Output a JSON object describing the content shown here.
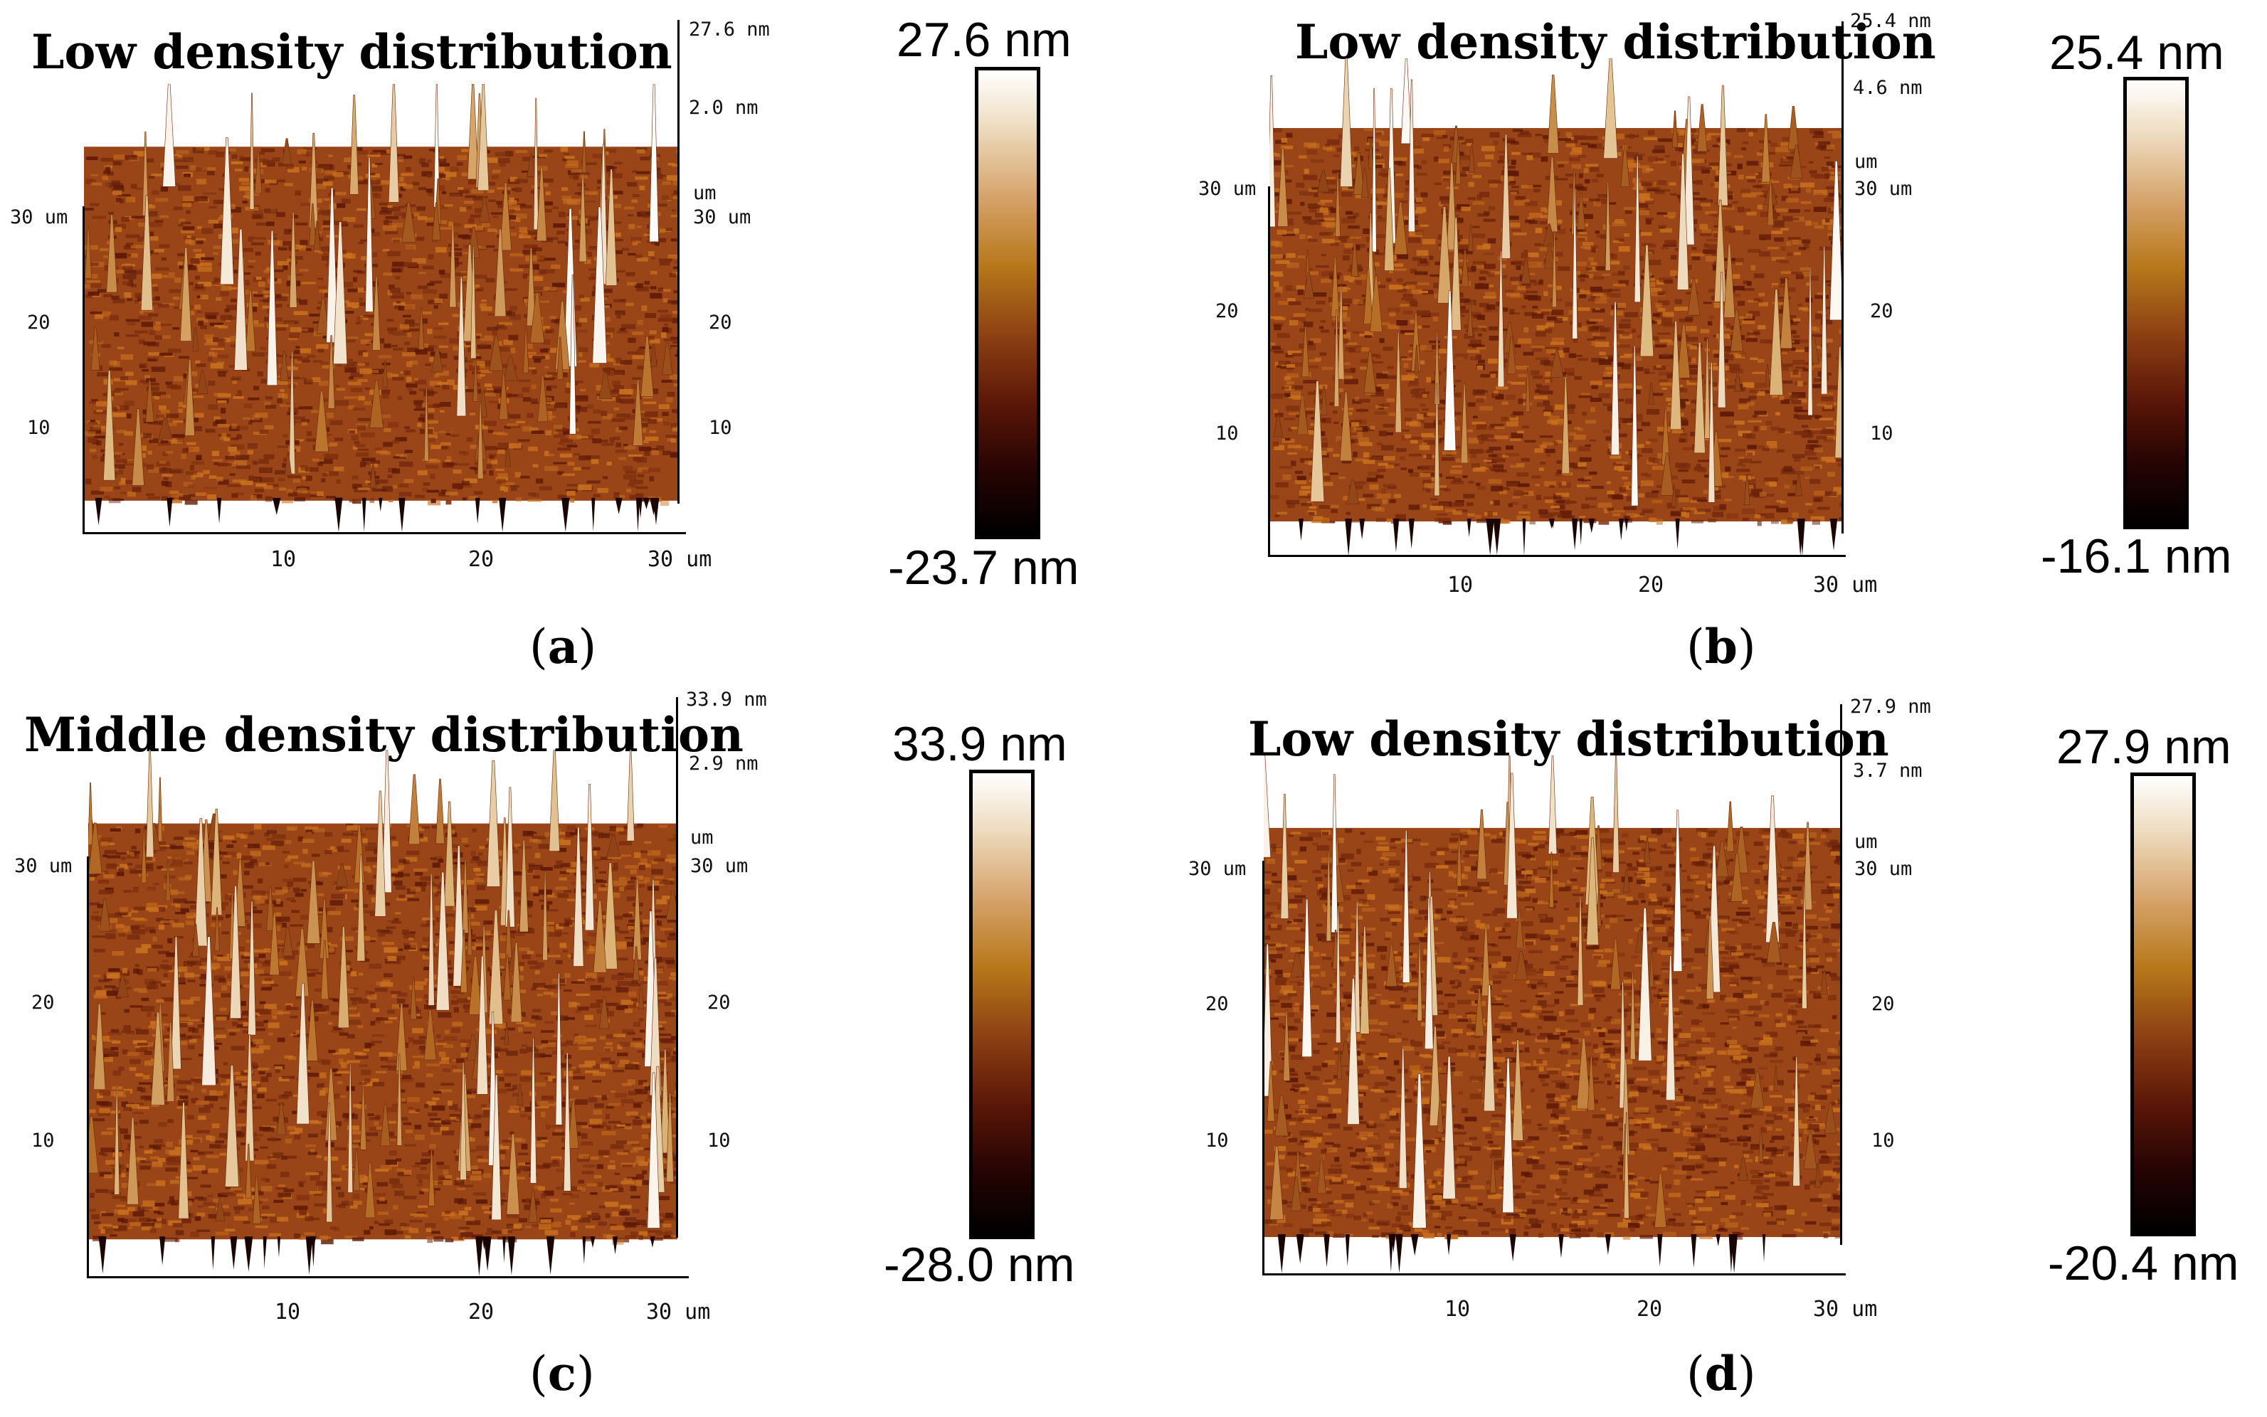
{
  "panels": [
    {
      "title": "Low density distribution",
      "z_max": "27.6 nm",
      "z_ref": "2.0 nm",
      "um_label": "um",
      "y_top": "30 um",
      "y_top_left": "30 um",
      "y_mid": "20",
      "y_low": "10",
      "x_ticks": [
        "10",
        "20",
        "30 um"
      ],
      "cbar_max": "27.6 nm",
      "cbar_min": "-23.7 nm",
      "label": "a"
    },
    {
      "title": "Low density distribution",
      "z_max": "25.4 nm",
      "z_ref": "4.6 nm",
      "um_label": "um",
      "y_top": "30 um",
      "y_top_left": "30 um",
      "y_mid": "20",
      "y_low": "10",
      "x_ticks": [
        "10",
        "20",
        "30 um"
      ],
      "cbar_max": "25.4 nm",
      "cbar_min": "-16.1 nm",
      "label": "b"
    },
    {
      "title": "Middle density distribution",
      "z_max": "33.9 nm",
      "z_ref": "2.9 nm",
      "um_label": "um",
      "y_top": "30 um",
      "y_top_left": "30 um",
      "y_mid": "20",
      "y_low": "10",
      "x_ticks": [
        "10",
        "20",
        "30 um"
      ],
      "cbar_max": "33.9 nm",
      "cbar_min": "-28.0 nm",
      "label": "c"
    },
    {
      "title": "Low density distribution",
      "z_max": "27.9 nm",
      "z_ref": "3.7 nm",
      "um_label": "um",
      "y_top": "30 um",
      "y_top_left": "30 um",
      "y_mid": "20",
      "y_low": "10",
      "x_ticks": [
        "10",
        "20",
        "30 um"
      ],
      "cbar_max": "27.9 nm",
      "cbar_min": "-20.4 nm",
      "label": "d"
    }
  ],
  "colors": {
    "surface_dark": "#5e1a08",
    "surface_mid": "#9a4517",
    "surface_light": "#c8701e",
    "peak_high": "#ffffff"
  }
}
